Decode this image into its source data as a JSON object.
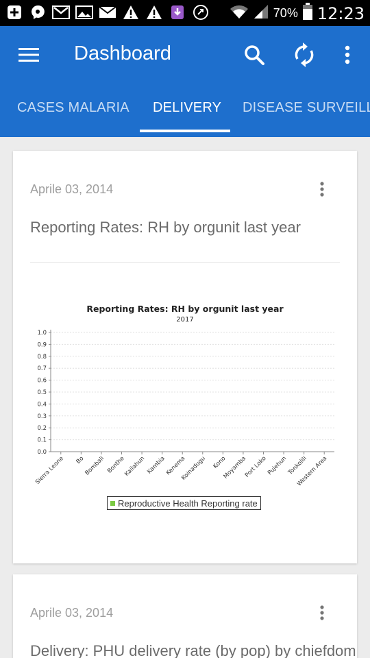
{
  "status_bar": {
    "battery": "70%",
    "time": "12:23",
    "icons": [
      "add-box-icon",
      "chat-bubble-icon",
      "gmail-icon",
      "image-icon",
      "mail-icon",
      "warning-icon",
      "warning-icon",
      "download-icon",
      "sync-circle-icon",
      "wifi-icon",
      "signal-icon",
      "battery-icon"
    ]
  },
  "appbar": {
    "title": "Dashboard",
    "color": "#1e6fcd"
  },
  "tabs": [
    {
      "label": "CASES MALARIA"
    },
    {
      "label": "DELIVERY"
    },
    {
      "label": "DISEASE SURVEILLANCE"
    }
  ],
  "active_tab": "DELIVERY",
  "cards": [
    {
      "date": "Aprile 03, 2014",
      "title": "Reporting Rates: RH by orgunit last year"
    },
    {
      "date": "Aprile 03, 2014",
      "title": "Delivery: PHU delivery rate (by pop) by chiefdom"
    }
  ],
  "chart_data": {
    "type": "bar",
    "title": "Reporting Rates: RH by orgunit last year",
    "subtitle": "2017",
    "categories": [
      "Sierra Leone",
      "Bo",
      "Bombali",
      "Bonthe",
      "Kailahun",
      "Kambia",
      "Kenema",
      "Koinadugu",
      "Kono",
      "Moyamba",
      "Port Loko",
      "Pujehun",
      "Tonkolili",
      "Western Area"
    ],
    "series": [
      {
        "name": "Reproductive Health Reporting rate",
        "values": [
          0,
          0,
          0,
          0,
          0,
          0,
          0,
          0,
          0,
          0,
          0,
          0,
          0,
          0
        ],
        "color": "#7ac943"
      }
    ],
    "yticks": [
      "1.0",
      "0.9",
      "0.8",
      "0.7",
      "0.6",
      "0.5",
      "0.4",
      "0.3",
      "0.2",
      "0.1",
      "0.0"
    ],
    "ylim": [
      0,
      1.0
    ],
    "grid": true,
    "legend_position": "bottom"
  }
}
